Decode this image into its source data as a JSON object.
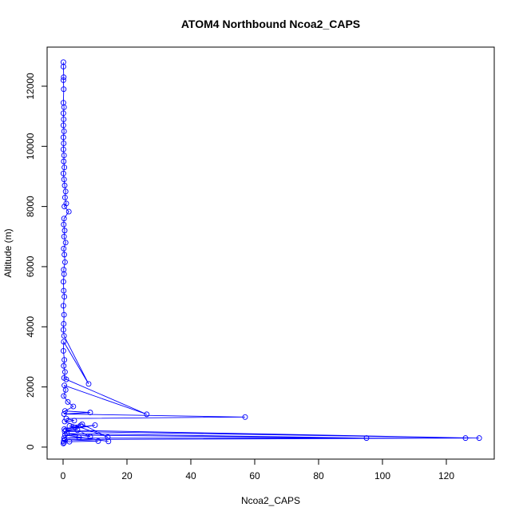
{
  "chart_data": {
    "type": "line",
    "title": "ATOM4 Northbound Ncoa2_CAPS",
    "xlabel": "Ncoa2_CAPS",
    "ylabel": "Altitude (m)",
    "xlim": [
      -5,
      135
    ],
    "ylim": [
      -400,
      13300
    ],
    "xticks": [
      0,
      20,
      40,
      60,
      80,
      100,
      120
    ],
    "yticks": [
      0,
      2000,
      4000,
      6000,
      8000,
      10000,
      12000
    ],
    "grid": false,
    "series_color": "#0000ff",
    "marker": "open-circle",
    "series": [
      {
        "values": [
          [
            0.1,
            12800
          ],
          [
            0.1,
            12650
          ],
          [
            0.2,
            12300
          ],
          [
            0.1,
            12200
          ],
          [
            0.2,
            11900
          ],
          [
            0.1,
            11450
          ],
          [
            0.3,
            11300
          ],
          [
            0.1,
            11100
          ],
          [
            0.2,
            10900
          ],
          [
            0.1,
            10700
          ],
          [
            0.3,
            10500
          ],
          [
            0.1,
            10300
          ],
          [
            0.2,
            10100
          ],
          [
            0.1,
            9900
          ],
          [
            0.3,
            9700
          ],
          [
            0.2,
            9500
          ],
          [
            0.4,
            9300
          ],
          [
            0.1,
            9100
          ],
          [
            0.3,
            8900
          ],
          [
            0.5,
            8700
          ],
          [
            0.8,
            8500
          ],
          [
            0.6,
            8300
          ],
          [
            1.0,
            8100
          ],
          [
            0.4,
            8000
          ],
          [
            1.8,
            7830
          ],
          [
            0.3,
            7600
          ],
          [
            0.2,
            7400
          ],
          [
            0.5,
            7200
          ],
          [
            0.3,
            7000
          ],
          [
            0.8,
            6800
          ],
          [
            0.2,
            6600
          ],
          [
            0.4,
            6400
          ],
          [
            0.6,
            6150
          ],
          [
            0.2,
            5900
          ],
          [
            0.3,
            5750
          ],
          [
            0.1,
            5500
          ],
          [
            0.2,
            5200
          ],
          [
            0.4,
            5000
          ],
          [
            0.1,
            4700
          ],
          [
            0.3,
            4400
          ],
          [
            0.2,
            4100
          ],
          [
            0.1,
            3900
          ],
          [
            0.3,
            3700
          ],
          [
            8.0,
            2100
          ],
          [
            0.2,
            3500
          ],
          [
            0.1,
            3200
          ],
          [
            0.4,
            2900
          ],
          [
            0.2,
            2700
          ],
          [
            0.6,
            2500
          ],
          [
            0.3,
            2300
          ],
          [
            1.0,
            2250
          ],
          [
            26.2,
            1090
          ],
          [
            0.4,
            2050
          ],
          [
            0.8,
            1900
          ],
          [
            0.2,
            1700
          ],
          [
            1.5,
            1500
          ],
          [
            3.2,
            1350
          ],
          [
            0.6,
            1200
          ],
          [
            8.5,
            1150
          ],
          [
            0.3,
            1100
          ],
          [
            57.0,
            1000
          ],
          [
            1.0,
            950
          ],
          [
            3.5,
            880
          ],
          [
            0.5,
            850
          ],
          [
            14.0,
            330
          ],
          [
            6.0,
            760
          ],
          [
            2.0,
            700
          ],
          [
            3.8,
            650
          ],
          [
            5.5,
            720
          ],
          [
            0.4,
            600
          ],
          [
            10.0,
            730
          ],
          [
            0.8,
            560
          ],
          [
            130.3,
            300
          ],
          [
            0.5,
            520
          ],
          [
            4.5,
            560
          ],
          [
            8.5,
            350
          ],
          [
            1.2,
            450
          ],
          [
            95.0,
            300
          ],
          [
            0.6,
            400
          ],
          [
            14.2,
            190
          ],
          [
            5.0,
            320
          ],
          [
            0.3,
            300
          ],
          [
            126.0,
            300
          ],
          [
            0.5,
            250
          ],
          [
            11.0,
            200
          ],
          [
            2.0,
            180
          ],
          [
            0.2,
            200
          ],
          [
            0.3,
            150
          ],
          [
            0.1,
            120
          ]
        ]
      }
    ]
  }
}
